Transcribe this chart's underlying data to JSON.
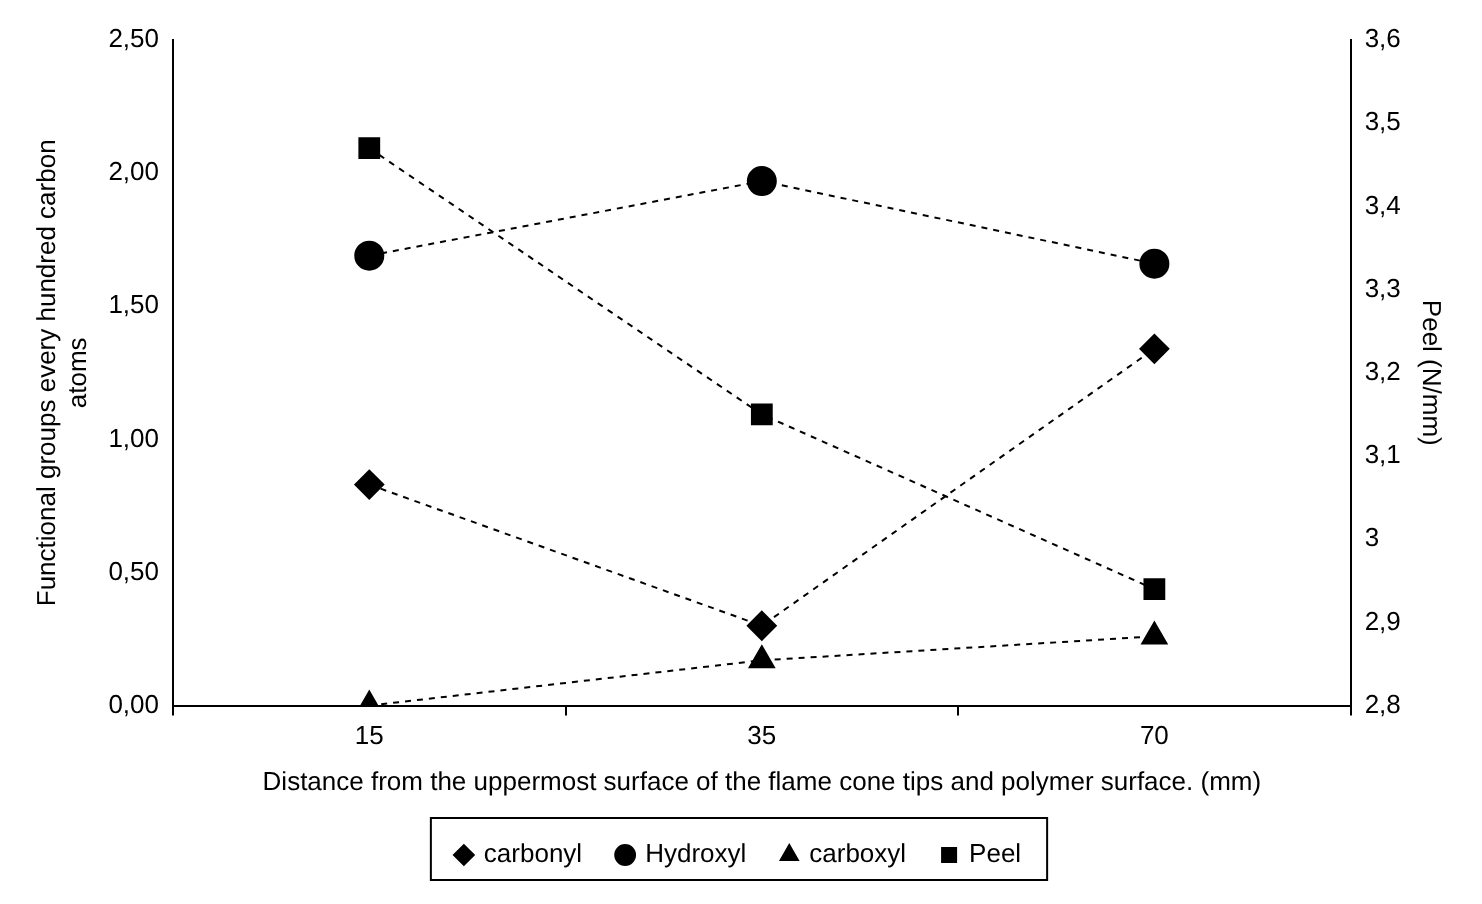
{
  "chart_data": {
    "type": "line",
    "xlabel": "Distance from the uppermost surface of the flame cone tips and polymer surface. (mm)",
    "ylabel": "Functional groups every hundred carbon atoms",
    "y2label": "Peel (N/mm)",
    "categories": [
      "15",
      "35",
      "70"
    ],
    "series": [
      {
        "name": "carbonyl",
        "color": "#000000",
        "marker": "diamond",
        "values": [
          0.83,
          0.3,
          1.34
        ]
      },
      {
        "name": "Hydroxyl",
        "color": "#000000",
        "marker": "circle",
        "values": [
          1.69,
          1.97,
          1.66
        ]
      },
      {
        "name": "carboxyl",
        "color": "#000000",
        "marker": "triangle",
        "values": [
          0,
          0.17,
          0.26
        ]
      },
      {
        "name": "Peel",
        "color": "#000000",
        "marker": "square",
        "axis": "y2",
        "values": [
          3.47,
          3.15,
          2.94
        ]
      }
    ],
    "ylim": [
      0,
      2.5
    ],
    "yticks": [
      {
        "value": 0,
        "label": "0,00"
      },
      {
        "value": 0.5,
        "label": "0,50"
      },
      {
        "value": 1,
        "label": "1,00"
      },
      {
        "value": 1.5,
        "label": "1,50"
      },
      {
        "value": 2,
        "label": "2,00"
      },
      {
        "value": 2.5,
        "label": "2,50"
      }
    ],
    "y2lim": [
      2.8,
      3.6
    ],
    "y2ticks": [
      {
        "value": 2.8,
        "label": "2,8"
      },
      {
        "value": 2.9,
        "label": "2,9"
      },
      {
        "value": 3,
        "label": "3"
      },
      {
        "value": 3.1,
        "label": "3,1"
      },
      {
        "value": 3.2,
        "label": "3,2"
      },
      {
        "value": 3.3,
        "label": "3,3"
      },
      {
        "value": 3.4,
        "label": "3,4"
      },
      {
        "value": 3.5,
        "label": "3,5"
      },
      {
        "value": 3.6,
        "label": "3,6"
      }
    ],
    "grid": false,
    "legend": "bottom",
    "line_style": "dashed"
  }
}
